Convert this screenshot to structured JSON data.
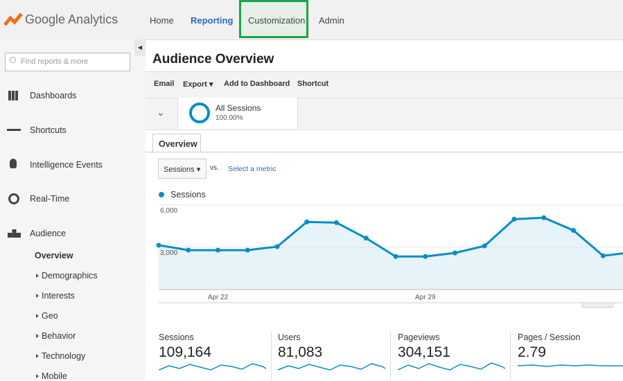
{
  "header": {
    "logo": "Google Analytics",
    "nav": [
      "Home",
      "Reporting",
      "Customization",
      "Admin"
    ]
  },
  "sidebar": {
    "search": "Find reports & more",
    "items": [
      "Dashboards",
      "Shortcuts",
      "Intelligence Events",
      "Real-Time",
      "Audience"
    ],
    "audience_items": [
      "Overview",
      "Demographics",
      "Interests",
      "Geo",
      "Behavior",
      "Technology",
      "Mobile"
    ]
  },
  "page": {
    "title": "Audience Overview",
    "toolbar": [
      "Email",
      "Export",
      "Add to Dashboard",
      "Shortcut"
    ],
    "segment": {
      "name": "All Sessions",
      "percent": "100.00%"
    },
    "tab": "Overview",
    "metric": "Sessions",
    "vs": "vs.",
    "select_metric": "Select a metric"
  },
  "chart_data": {
    "type": "line",
    "categories": [
      null,
      null,
      "Apr 22",
      null,
      null,
      null,
      null,
      null,
      null,
      "Apr 29",
      null,
      null,
      null,
      null,
      null,
      null,
      null
    ],
    "series": [
      {
        "name": "Sessions",
        "color": "#058dc7",
        "values": [
          3150,
          2800,
          2800,
          2800,
          3050,
          4800,
          4750,
          3650,
          2350,
          2350,
          2600,
          3100,
          5000,
          5100,
          4200,
          2400,
          2650
        ]
      }
    ],
    "ylim": [
      0,
      6000
    ],
    "yticks": [
      {
        "value": 3000,
        "label": "3,000"
      },
      {
        "value": 6000,
        "label": "6,000"
      }
    ],
    "grid": true
  },
  "scorecards": [
    {
      "label": "Sessions",
      "value": "109,164"
    },
    {
      "label": "Users",
      "value": "81,083"
    },
    {
      "label": "Pageviews",
      "value": "304,151"
    },
    {
      "label": "Pages / Session",
      "value": "2.79"
    }
  ]
}
